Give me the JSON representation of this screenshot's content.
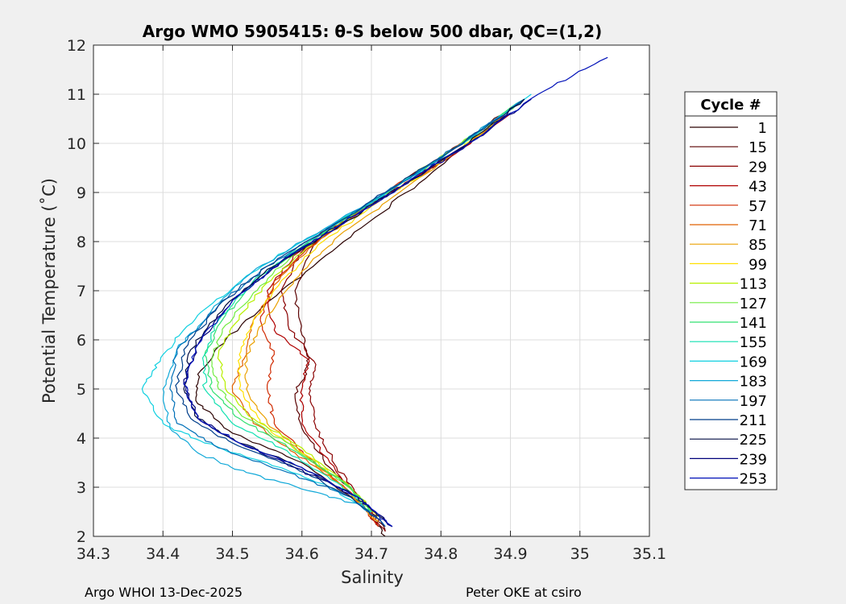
{
  "chart_data": {
    "type": "line",
    "title": "Argo WMO 5905415: θ-S below 500 dbar,  QC=(1,2)",
    "xlabel": "Salinity",
    "ylabel": "Potential Temperature (˚C)",
    "xlim": [
      34.3,
      35.1
    ],
    "ylim": [
      2,
      12
    ],
    "xticks": [
      "34.3",
      "34.4",
      "34.5",
      "34.6",
      "34.7",
      "34.8",
      "34.9",
      "35",
      "35.1"
    ],
    "yticks": [
      "2",
      "3",
      "4",
      "5",
      "6",
      "7",
      "8",
      "9",
      "10",
      "11",
      "12"
    ],
    "grid": true,
    "legend": {
      "title": "Cycle #",
      "placement": "right",
      "entries": [
        {
          "name": "1",
          "color": "#2a0000"
        },
        {
          "name": "15",
          "color": "#5a0000"
        },
        {
          "name": "29",
          "color": "#8a0000"
        },
        {
          "name": "43",
          "color": "#b00000"
        },
        {
          "name": "57",
          "color": "#d02a00"
        },
        {
          "name": "71",
          "color": "#e06000"
        },
        {
          "name": "85",
          "color": "#eaa000"
        },
        {
          "name": "99",
          "color": "#ffe000"
        },
        {
          "name": "113",
          "color": "#b8f000"
        },
        {
          "name": "127",
          "color": "#70ec40"
        },
        {
          "name": "141",
          "color": "#30e070"
        },
        {
          "name": "155",
          "color": "#10e0b0"
        },
        {
          "name": "169",
          "color": "#10d0e0"
        },
        {
          "name": "183",
          "color": "#10a8d8"
        },
        {
          "name": "197",
          "color": "#0070b8"
        },
        {
          "name": "211",
          "color": "#003e8a"
        },
        {
          "name": "225",
          "color": "#000a40"
        },
        {
          "name": "239",
          "color": "#00007a"
        },
        {
          "name": "253",
          "color": "#0010b8"
        }
      ]
    },
    "series": [
      {
        "name": "1",
        "color": "#2a0000",
        "points": [
          [
            34.72,
            2.0
          ],
          [
            34.69,
            2.6
          ],
          [
            34.6,
            3.5
          ],
          [
            34.5,
            4.1
          ],
          [
            34.45,
            4.7
          ],
          [
            34.45,
            5.3
          ],
          [
            34.49,
            6.0
          ],
          [
            34.57,
            7.0
          ],
          [
            34.66,
            8.0
          ],
          [
            34.75,
            9.0
          ],
          [
            34.84,
            10.0
          ],
          [
            34.91,
            10.8
          ]
        ]
      },
      {
        "name": "15",
        "color": "#5a0000",
        "points": [
          [
            34.72,
            2.1
          ],
          [
            34.69,
            2.7
          ],
          [
            34.64,
            3.4
          ],
          [
            34.6,
            4.2
          ],
          [
            34.59,
            4.9
          ],
          [
            34.61,
            5.5
          ],
          [
            34.6,
            6.1
          ],
          [
            34.59,
            7.0
          ],
          [
            34.62,
            8.0
          ],
          [
            34.72,
            9.0
          ],
          [
            34.83,
            10.0
          ],
          [
            34.9,
            10.7
          ]
        ]
      },
      {
        "name": "29",
        "color": "#8a0000",
        "points": [
          [
            34.72,
            2.1
          ],
          [
            34.69,
            2.7
          ],
          [
            34.65,
            3.4
          ],
          [
            34.62,
            4.2
          ],
          [
            34.61,
            4.9
          ],
          [
            34.62,
            5.5
          ],
          [
            34.58,
            6.3
          ],
          [
            34.57,
            7.0
          ],
          [
            34.6,
            7.8
          ],
          [
            34.68,
            8.6
          ],
          [
            34.75,
            9.2
          ],
          [
            34.84,
            10.0
          ],
          [
            34.9,
            10.7
          ]
        ]
      },
      {
        "name": "43",
        "color": "#b00000",
        "points": [
          [
            34.71,
            2.2
          ],
          [
            34.68,
            2.8
          ],
          [
            34.64,
            3.5
          ],
          [
            34.6,
            4.3
          ],
          [
            34.6,
            5.0
          ],
          [
            34.61,
            5.6
          ],
          [
            34.56,
            6.2
          ],
          [
            34.55,
            7.0
          ],
          [
            34.6,
            7.9
          ],
          [
            34.7,
            8.8
          ],
          [
            34.8,
            9.6
          ],
          [
            34.9,
            10.6
          ]
        ]
      },
      {
        "name": "57",
        "color": "#d02a00",
        "points": [
          [
            34.71,
            2.2
          ],
          [
            34.67,
            2.9
          ],
          [
            34.61,
            3.6
          ],
          [
            34.56,
            4.3
          ],
          [
            34.55,
            5.0
          ],
          [
            34.56,
            5.7
          ],
          [
            34.54,
            6.4
          ],
          [
            34.56,
            7.2
          ],
          [
            34.62,
            8.0
          ],
          [
            34.72,
            9.0
          ],
          [
            34.82,
            9.9
          ],
          [
            34.9,
            10.7
          ]
        ]
      },
      {
        "name": "71",
        "color": "#e06000",
        "points": [
          [
            34.71,
            2.3
          ],
          [
            34.66,
            3.0
          ],
          [
            34.59,
            3.7
          ],
          [
            34.53,
            4.3
          ],
          [
            34.5,
            5.0
          ],
          [
            34.52,
            5.7
          ],
          [
            34.53,
            6.4
          ],
          [
            34.57,
            7.3
          ],
          [
            34.63,
            8.1
          ],
          [
            34.73,
            9.0
          ],
          [
            34.83,
            9.9
          ],
          [
            34.9,
            10.7
          ]
        ]
      },
      {
        "name": "85",
        "color": "#eaa000",
        "points": [
          [
            34.71,
            2.3
          ],
          [
            34.66,
            3.0
          ],
          [
            34.6,
            3.7
          ],
          [
            34.55,
            4.3
          ],
          [
            34.52,
            5.0
          ],
          [
            34.52,
            5.7
          ],
          [
            34.55,
            6.5
          ],
          [
            34.6,
            7.4
          ],
          [
            34.66,
            8.2
          ],
          [
            34.74,
            9.0
          ],
          [
            34.84,
            10.0
          ],
          [
            34.9,
            10.7
          ]
        ]
      },
      {
        "name": "99",
        "color": "#ffe000",
        "points": [
          [
            34.71,
            2.4
          ],
          [
            34.67,
            3.0
          ],
          [
            34.6,
            3.7
          ],
          [
            34.54,
            4.3
          ],
          [
            34.51,
            5.0
          ],
          [
            34.51,
            5.7
          ],
          [
            34.53,
            6.4
          ],
          [
            34.57,
            7.2
          ],
          [
            34.63,
            8.0
          ],
          [
            34.73,
            9.0
          ],
          [
            34.83,
            9.9
          ],
          [
            34.9,
            10.7
          ]
        ]
      },
      {
        "name": "113",
        "color": "#b8f000",
        "points": [
          [
            34.71,
            2.4
          ],
          [
            34.67,
            3.0
          ],
          [
            34.6,
            3.8
          ],
          [
            34.53,
            4.4
          ],
          [
            34.49,
            5.0
          ],
          [
            34.48,
            5.7
          ],
          [
            34.51,
            6.5
          ],
          [
            34.56,
            7.3
          ],
          [
            34.63,
            8.1
          ],
          [
            34.72,
            9.0
          ],
          [
            34.82,
            9.9
          ],
          [
            34.9,
            10.7
          ]
        ]
      },
      {
        "name": "127",
        "color": "#70ec40",
        "points": [
          [
            34.7,
            2.5
          ],
          [
            34.66,
            3.1
          ],
          [
            34.59,
            3.8
          ],
          [
            34.52,
            4.4
          ],
          [
            34.48,
            5.0
          ],
          [
            34.47,
            5.6
          ],
          [
            34.49,
            6.3
          ],
          [
            34.54,
            7.1
          ],
          [
            34.6,
            7.9
          ],
          [
            34.71,
            8.9
          ],
          [
            34.82,
            9.9
          ],
          [
            34.91,
            10.8
          ]
        ]
      },
      {
        "name": "141",
        "color": "#30e070",
        "points": [
          [
            34.7,
            2.5
          ],
          [
            34.66,
            3.1
          ],
          [
            34.58,
            3.8
          ],
          [
            34.51,
            4.4
          ],
          [
            34.47,
            5.0
          ],
          [
            34.46,
            5.7
          ],
          [
            34.49,
            6.5
          ],
          [
            34.54,
            7.3
          ],
          [
            34.61,
            8.0
          ],
          [
            34.71,
            8.9
          ],
          [
            34.82,
            9.9
          ],
          [
            34.92,
            10.9
          ]
        ]
      },
      {
        "name": "155",
        "color": "#10e0b0",
        "points": [
          [
            34.7,
            2.5
          ],
          [
            34.65,
            3.1
          ],
          [
            34.57,
            3.8
          ],
          [
            34.5,
            4.3
          ],
          [
            34.46,
            5.0
          ],
          [
            34.46,
            5.7
          ],
          [
            34.48,
            6.4
          ],
          [
            34.53,
            7.2
          ],
          [
            34.6,
            7.9
          ],
          [
            34.7,
            8.8
          ],
          [
            34.81,
            9.8
          ],
          [
            34.92,
            10.9
          ]
        ]
      },
      {
        "name": "169",
        "color": "#10d0e0",
        "points": [
          [
            34.7,
            2.5
          ],
          [
            34.64,
            3.0
          ],
          [
            34.55,
            3.5
          ],
          [
            34.46,
            3.9
          ],
          [
            34.4,
            4.3
          ],
          [
            34.37,
            5.0
          ],
          [
            34.4,
            5.7
          ],
          [
            34.45,
            6.5
          ],
          [
            34.52,
            7.3
          ],
          [
            34.6,
            8.0
          ],
          [
            34.7,
            8.8
          ],
          [
            34.8,
            9.7
          ],
          [
            34.93,
            11.0
          ]
        ]
      },
      {
        "name": "183",
        "color": "#10a8d8",
        "points": [
          [
            34.69,
            2.6
          ],
          [
            34.62,
            2.9
          ],
          [
            34.52,
            3.3
          ],
          [
            34.45,
            3.7
          ],
          [
            34.41,
            4.2
          ],
          [
            34.4,
            5.0
          ],
          [
            34.42,
            5.8
          ],
          [
            34.47,
            6.6
          ],
          [
            34.53,
            7.4
          ],
          [
            34.6,
            8.0
          ],
          [
            34.71,
            8.9
          ],
          [
            34.82,
            9.9
          ],
          [
            34.92,
            10.9
          ]
        ]
      },
      {
        "name": "197",
        "color": "#0070b8",
        "points": [
          [
            34.72,
            2.2
          ],
          [
            34.67,
            2.8
          ],
          [
            34.58,
            3.3
          ],
          [
            34.48,
            3.8
          ],
          [
            34.42,
            4.3
          ],
          [
            34.41,
            5.0
          ],
          [
            34.42,
            5.8
          ],
          [
            34.48,
            6.7
          ],
          [
            34.55,
            7.5
          ],
          [
            34.63,
            8.2
          ],
          [
            34.72,
            9.0
          ],
          [
            34.82,
            9.9
          ],
          [
            34.92,
            10.9
          ]
        ]
      },
      {
        "name": "211",
        "color": "#003e8a",
        "points": [
          [
            34.72,
            2.2
          ],
          [
            34.67,
            2.8
          ],
          [
            34.59,
            3.4
          ],
          [
            34.5,
            3.9
          ],
          [
            34.44,
            4.4
          ],
          [
            34.42,
            5.0
          ],
          [
            34.43,
            5.8
          ],
          [
            34.48,
            6.7
          ],
          [
            34.55,
            7.5
          ],
          [
            34.63,
            8.2
          ],
          [
            34.72,
            9.0
          ],
          [
            34.82,
            9.9
          ],
          [
            34.92,
            10.9
          ]
        ]
      },
      {
        "name": "225",
        "color": "#000a40",
        "points": [
          [
            34.73,
            2.2
          ],
          [
            34.68,
            2.8
          ],
          [
            34.6,
            3.4
          ],
          [
            34.51,
            3.9
          ],
          [
            34.45,
            4.4
          ],
          [
            34.43,
            5.0
          ],
          [
            34.44,
            5.8
          ],
          [
            34.49,
            6.7
          ],
          [
            34.56,
            7.5
          ],
          [
            34.64,
            8.2
          ],
          [
            34.73,
            9.0
          ],
          [
            34.83,
            9.9
          ],
          [
            34.92,
            10.9
          ]
        ]
      },
      {
        "name": "239",
        "color": "#00007a",
        "points": [
          [
            34.73,
            2.2
          ],
          [
            34.68,
            2.8
          ],
          [
            34.59,
            3.4
          ],
          [
            34.51,
            3.9
          ],
          [
            34.45,
            4.4
          ],
          [
            34.43,
            5.1
          ],
          [
            34.45,
            5.9
          ],
          [
            34.5,
            6.8
          ],
          [
            34.57,
            7.6
          ],
          [
            34.65,
            8.3
          ],
          [
            34.74,
            9.1
          ],
          [
            34.84,
            10.0
          ],
          [
            34.93,
            10.9
          ]
        ]
      },
      {
        "name": "253",
        "color": "#0010b8",
        "points": [
          [
            34.73,
            2.2
          ],
          [
            34.68,
            2.8
          ],
          [
            34.6,
            3.4
          ],
          [
            34.51,
            3.9
          ],
          [
            34.45,
            4.4
          ],
          [
            34.43,
            5.1
          ],
          [
            34.45,
            5.9
          ],
          [
            34.5,
            6.8
          ],
          [
            34.57,
            7.6
          ],
          [
            34.65,
            8.3
          ],
          [
            34.74,
            9.1
          ],
          [
            34.84,
            10.0
          ],
          [
            34.94,
            11.0
          ],
          [
            35.04,
            11.75
          ]
        ]
      }
    ]
  },
  "footer": {
    "left": "Argo WHOI 13-Dec-2025",
    "right": "Peter OKE at csiro"
  }
}
